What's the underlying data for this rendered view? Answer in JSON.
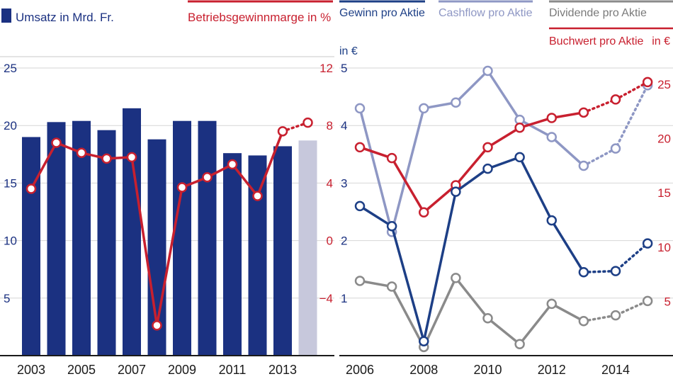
{
  "colors": {
    "bar": "#1b3181",
    "bar_forecast": "#c7c8dc",
    "margin": "#c8202f",
    "gewinn": "#1d3f86",
    "cashflow": "#8e97c4",
    "dividende": "#8a8a8a",
    "buchwert": "#c8202f",
    "axis_left": "#1b3181",
    "axis_red": "#c8202f"
  },
  "chart_data": [
    {
      "type": "bar",
      "legend": {
        "umsatz": "Umsatz in Mrd. Fr.",
        "marge": "Betriebsgewinnmarge in %"
      },
      "categories": [
        2003,
        2004,
        2005,
        2006,
        2007,
        2008,
        2009,
        2010,
        2011,
        2012,
        2013,
        2014
      ],
      "x_tick_labels": [
        "2003",
        "2005",
        "2007",
        "2009",
        "2011",
        "2013"
      ],
      "x_tick_values": [
        2003,
        2005,
        2007,
        2009,
        2011,
        2013
      ],
      "left_axis": {
        "ylim": [
          0,
          25
        ],
        "ticks": [
          "5",
          "10",
          "15",
          "20",
          "25"
        ],
        "tick_values": [
          5,
          10,
          15,
          20,
          25
        ]
      },
      "right_axis": {
        "ylim": [
          -8,
          12
        ],
        "ticks": [
          "−4",
          "0",
          "4",
          "8",
          "12"
        ],
        "tick_values": [
          -4,
          0,
          4,
          8,
          12
        ]
      },
      "series": [
        {
          "key": "umsatz",
          "kind": "bar",
          "values": [
            19.0,
            20.3,
            20.4,
            19.6,
            21.5,
            18.8,
            20.4,
            20.4,
            17.6,
            17.4,
            18.2,
            18.7
          ],
          "forecast_from": 2014
        },
        {
          "key": "marge",
          "kind": "line",
          "values": [
            3.6,
            6.8,
            6.1,
            5.7,
            5.8,
            -5.9,
            3.7,
            4.4,
            5.3,
            3.1,
            7.6,
            8.2
          ],
          "forecast_from": 2014
        }
      ]
    },
    {
      "type": "line",
      "legend": {
        "gewinn": "Gewinn pro Aktie",
        "cashflow": "Cashflow pro Aktie",
        "dividende": "Dividende pro Aktie",
        "buchwert": "Buchwert pro Aktie",
        "buchwert_unit": "in €"
      },
      "left_unit_label": "in €",
      "x_tick_labels": [
        "2006",
        "2008",
        "2010",
        "2012",
        "2014"
      ],
      "x_tick_values": [
        2006,
        2008,
        2010,
        2012,
        2014
      ],
      "xlim": [
        2005.5,
        2015.5
      ],
      "left_axis": {
        "ylim": [
          0,
          5
        ],
        "ticks": [
          "1",
          "2",
          "3",
          "4",
          "5"
        ],
        "tick_values": [
          1,
          2,
          3,
          4,
          5
        ]
      },
      "right_axis": {
        "ylim": [
          0,
          26.5
        ],
        "ticks": [
          "5",
          "10",
          "15",
          "20",
          "25"
        ],
        "tick_values": [
          5,
          10,
          15,
          20,
          25
        ]
      },
      "series": [
        {
          "key": "gewinn",
          "axis": "left",
          "x": [
            2006,
            2007,
            2008,
            2009,
            2010,
            2011,
            2012,
            2013,
            2014,
            2015
          ],
          "values": [
            2.6,
            2.25,
            0.25,
            2.85,
            3.25,
            3.45,
            2.35,
            1.45,
            1.47,
            1.95
          ],
          "forecast_from": 2013
        },
        {
          "key": "cashflow",
          "axis": "left",
          "x": [
            2006,
            2007,
            2008,
            2009,
            2010,
            2011,
            2012,
            2013,
            2014,
            2015
          ],
          "values": [
            4.3,
            2.15,
            4.3,
            4.4,
            4.95,
            4.1,
            3.8,
            3.3,
            3.6,
            4.7
          ],
          "forecast_from": 2013
        },
        {
          "key": "dividende",
          "axis": "left",
          "x": [
            2006,
            2007,
            2008,
            2009,
            2010,
            2011,
            2012,
            2013,
            2014,
            2015
          ],
          "values": [
            1.3,
            1.2,
            0.15,
            1.35,
            0.65,
            0.2,
            0.9,
            0.6,
            0.7,
            0.95
          ],
          "forecast_from": 2013
        },
        {
          "key": "buchwert",
          "axis": "right",
          "x": [
            2006,
            2007,
            2008,
            2009,
            2010,
            2011,
            2012,
            2013,
            2014,
            2015
          ],
          "values": [
            19.2,
            18.2,
            13.2,
            15.7,
            19.2,
            21.0,
            21.9,
            22.4,
            23.6,
            25.2
          ],
          "forecast_from": 2013
        }
      ]
    }
  ]
}
